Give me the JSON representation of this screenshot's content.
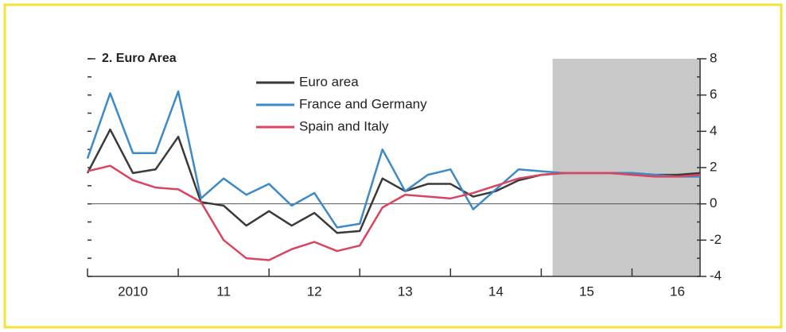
{
  "chart_data": {
    "type": "line",
    "title": "2. Euro Area",
    "x": [
      2010,
      2010.25,
      2010.5,
      2010.75,
      2011,
      2011.25,
      2011.5,
      2011.75,
      2012,
      2012.25,
      2012.5,
      2012.75,
      2013,
      2013.25,
      2013.5,
      2013.75,
      2014,
      2014.25,
      2014.5,
      2014.75,
      2015,
      2015.25,
      2015.5,
      2015.75,
      2016,
      2016.25,
      2016.5,
      2016.75
    ],
    "series": [
      {
        "name": "Euro area",
        "color": "#3a3a3a",
        "values": [
          1.7,
          4.1,
          1.7,
          1.9,
          3.7,
          0.1,
          -0.1,
          -1.2,
          -0.4,
          -1.2,
          -0.5,
          -1.6,
          -1.5,
          1.4,
          0.7,
          1.1,
          1.1,
          0.4,
          0.7,
          1.3,
          1.6,
          1.7,
          1.7,
          1.7,
          1.7,
          1.6,
          1.6,
          1.7
        ]
      },
      {
        "name": "France and Germany",
        "color": "#3c8ac8",
        "values": [
          2.5,
          6.1,
          2.8,
          2.8,
          6.2,
          0.3,
          1.4,
          0.5,
          1.1,
          -0.1,
          0.6,
          -1.3,
          -1.1,
          3.0,
          0.7,
          1.6,
          1.9,
          -0.3,
          0.8,
          1.9,
          1.8,
          1.7,
          1.7,
          1.7,
          1.7,
          1.6,
          1.5,
          1.5
        ]
      },
      {
        "name": "Spain and Italy",
        "color": "#d9455f",
        "values": [
          1.8,
          2.1,
          1.3,
          0.9,
          0.8,
          0.1,
          -2.0,
          -3.0,
          -3.1,
          -2.5,
          -2.1,
          -2.6,
          -2.3,
          -0.2,
          0.5,
          0.4,
          0.3,
          0.6,
          1.0,
          1.4,
          1.6,
          1.7,
          1.7,
          1.7,
          1.6,
          1.5,
          1.5,
          1.6
        ]
      }
    ],
    "xlim": [
      2010,
      2016.75
    ],
    "xticks": [
      {
        "value": 2010.5,
        "label": "2010"
      },
      {
        "value": 2011.5,
        "label": "11"
      },
      {
        "value": 2012.5,
        "label": "12"
      },
      {
        "value": 2013.5,
        "label": "13"
      },
      {
        "value": 2014.5,
        "label": "14"
      },
      {
        "value": 2015.5,
        "label": "15"
      },
      {
        "value": 2016.5,
        "label": "16"
      }
    ],
    "xdividers": [
      2011,
      2012,
      2013,
      2014,
      2015,
      2016
    ],
    "ylim": [
      -4,
      8
    ],
    "yticks": [
      -4,
      -2,
      0,
      2,
      4,
      6,
      8
    ],
    "yminorticks": [
      -3,
      -1,
      1,
      3,
      5,
      7
    ],
    "forecast_shade": [
      2015.125,
      2016.75
    ],
    "shade_color": "#c8c8c8",
    "yaxis_side": "right"
  }
}
